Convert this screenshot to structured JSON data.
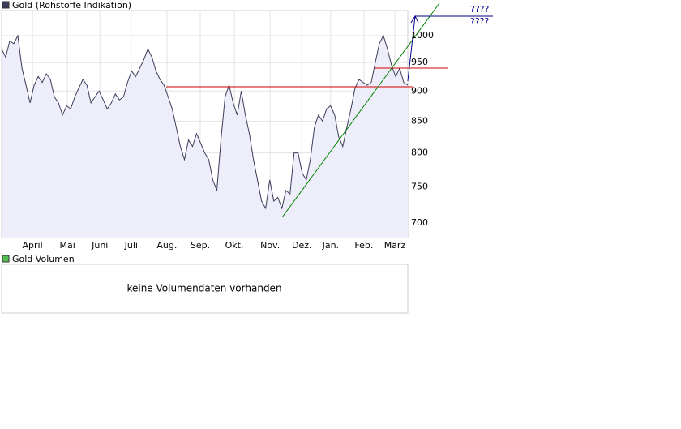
{
  "chart_data": {
    "type": "line",
    "title": "Gold (Rohstoffe Indikation)",
    "log_scale": true,
    "grid": true,
    "series": [
      {
        "name": "Gold (Rohstoffe Indikation)",
        "color": "#3c3c5a",
        "fill": "#eeeefa",
        "x": [
          0,
          1,
          2,
          3,
          4,
          5,
          6,
          7,
          8,
          9,
          10,
          11,
          12,
          13,
          14,
          15,
          16,
          17,
          18,
          19,
          20,
          21,
          22,
          23,
          24,
          25,
          26,
          27,
          28,
          29,
          30,
          31,
          32,
          33,
          34,
          35,
          36,
          37,
          38,
          39,
          40,
          41,
          42,
          43,
          44,
          45,
          46,
          47,
          48,
          49,
          50,
          51,
          52,
          53,
          54,
          55,
          56,
          57,
          58,
          59,
          60,
          61,
          62,
          63,
          64,
          65,
          66,
          67,
          68,
          69,
          70,
          71,
          72,
          73,
          74,
          75,
          76,
          77,
          78,
          79,
          80,
          81,
          82,
          83,
          84,
          85,
          86,
          87,
          88,
          89,
          90,
          91,
          92,
          93,
          94,
          95,
          96,
          97,
          98,
          99,
          100
        ],
        "values": [
          975,
          960,
          990,
          985,
          1000,
          940,
          910,
          880,
          910,
          925,
          915,
          930,
          920,
          890,
          880,
          860,
          875,
          870,
          890,
          905,
          920,
          910,
          880,
          890,
          900,
          885,
          870,
          880,
          895,
          885,
          890,
          915,
          935,
          925,
          940,
          955,
          975,
          960,
          935,
          920,
          910,
          890,
          870,
          840,
          810,
          790,
          820,
          810,
          830,
          815,
          800,
          790,
          760,
          745,
          820,
          890,
          910,
          880,
          860,
          900,
          860,
          830,
          790,
          760,
          730,
          720,
          760,
          730,
          735,
          720,
          745,
          740,
          800,
          800,
          770,
          760,
          790,
          840,
          860,
          850,
          870,
          875,
          860,
          825,
          810,
          840,
          870,
          905,
          920,
          915,
          910,
          915,
          950,
          985,
          1000,
          975,
          945,
          925,
          940,
          915,
          910
        ]
      }
    ],
    "xlim": [
      0,
      100
    ],
    "xticks": [
      {
        "value": 7.6,
        "label": "April"
      },
      {
        "value": 16.2,
        "label": "Mai"
      },
      {
        "value": 24.2,
        "label": "Juni"
      },
      {
        "value": 31.9,
        "label": "Juli"
      },
      {
        "value": 40.7,
        "label": "Aug."
      },
      {
        "value": 48.9,
        "label": "Sep."
      },
      {
        "value": 57.3,
        "label": "Okt."
      },
      {
        "value": 66.1,
        "label": "Nov."
      },
      {
        "value": 73.9,
        "label": "Dez."
      },
      {
        "value": 81,
        "label": "Jan."
      },
      {
        "value": 89.2,
        "label": "Feb."
      },
      {
        "value": 96.8,
        "label": "März"
      }
    ],
    "ylim": [
      681,
      1049
    ],
    "yticks": [
      700,
      750,
      800,
      850,
      900,
      950,
      1000
    ],
    "annotations": [
      "????",
      "????"
    ],
    "volume_title": "Gold Volumen",
    "volume_color": "#55bb55",
    "volume_message": "keine Volumendaten vorhanden"
  }
}
